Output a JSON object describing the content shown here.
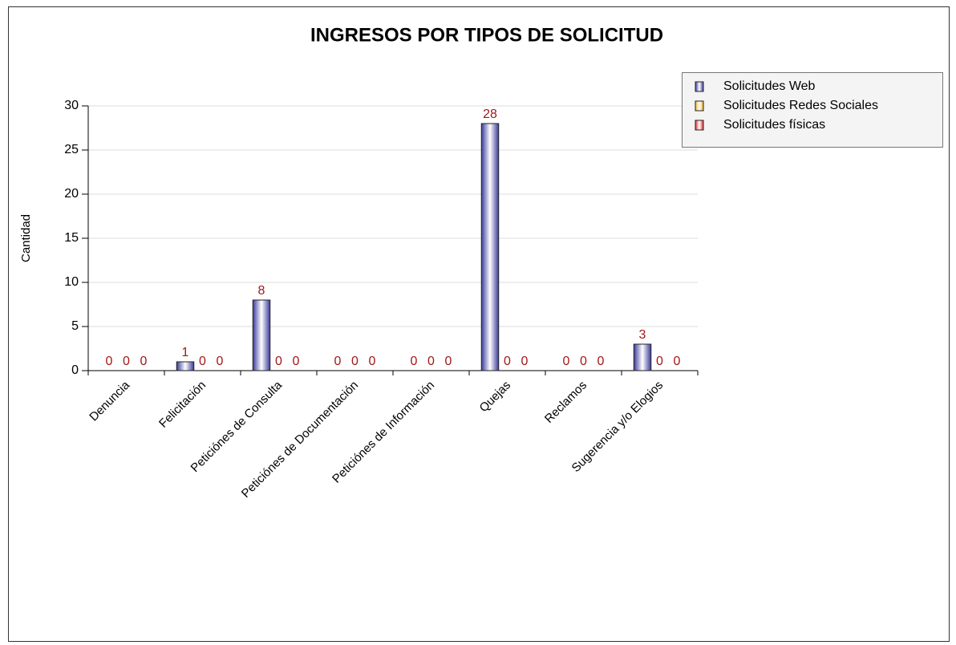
{
  "chart_data": {
    "type": "bar",
    "title": "INGRESOS POR TIPOS DE SOLICITUD",
    "y_label": "Cantidad",
    "categories": [
      "Denuncia",
      "Felicitación",
      "Peticiónes de Consulta",
      "Peticiónes de Documentación",
      "Peticiónes de Información",
      "Quejas",
      "Reclamos",
      "Sugerencia y/o Elogios"
    ],
    "series": [
      {
        "name": "Solicitudes Web",
        "color": "#3a3a9c",
        "values": [
          0,
          1,
          8,
          0,
          0,
          28,
          0,
          3
        ]
      },
      {
        "name": "Solicitudes Redes Sociales",
        "color": "#f0b830",
        "values": [
          0,
          0,
          0,
          0,
          0,
          0,
          0,
          0
        ]
      },
      {
        "name": "Solicitudes físicas",
        "color": "#e03030",
        "values": [
          0,
          0,
          0,
          0,
          0,
          0,
          0,
          0
        ]
      }
    ],
    "ylim": [
      0,
      30
    ],
    "yticks": [
      0,
      5,
      10,
      15,
      20,
      25,
      30
    ],
    "grid": true,
    "legend": "top-right"
  }
}
